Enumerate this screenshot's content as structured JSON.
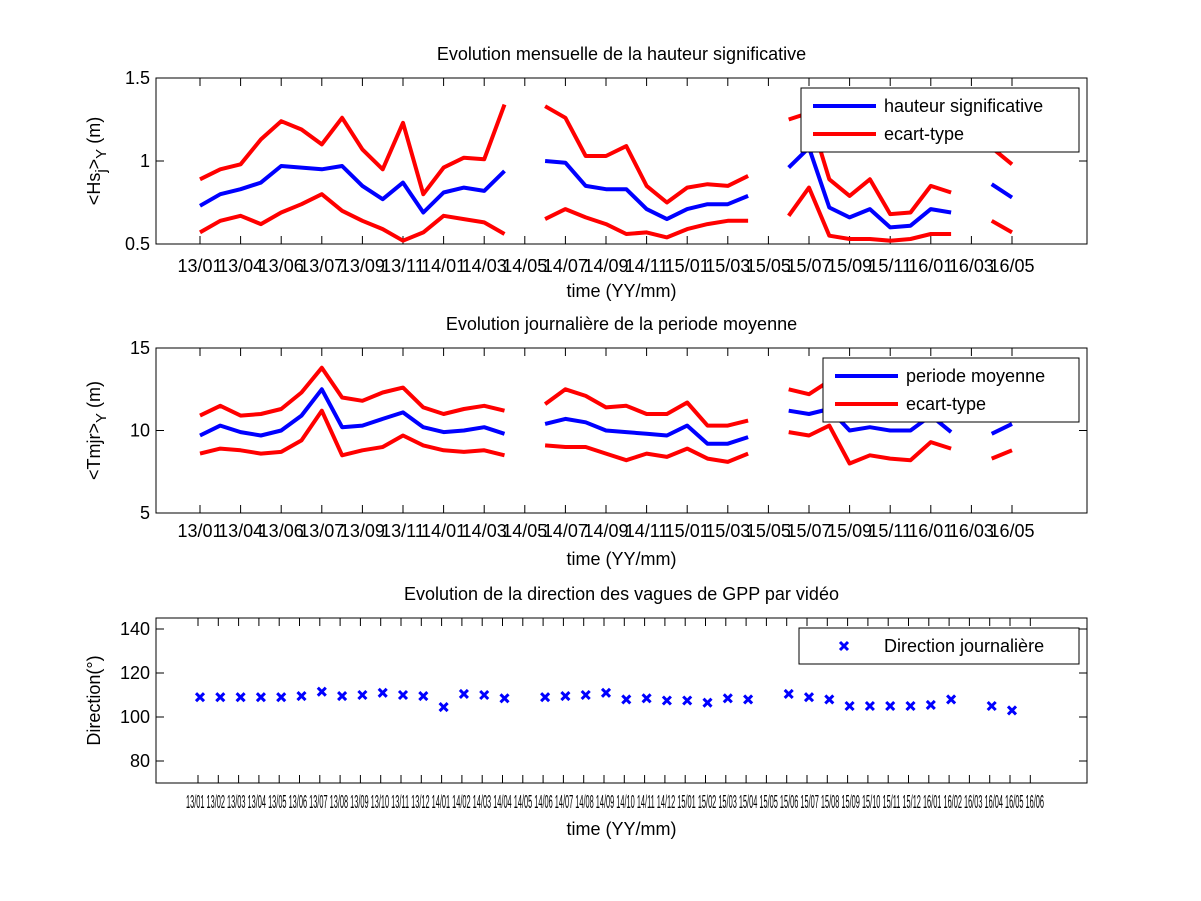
{
  "chart_data": [
    {
      "type": "line",
      "title": "Evolution mensuelle de la hauteur significative",
      "xlabel": "time (YY/mm)",
      "ylabel_main": "<Hs",
      "ylabel_sub": "j",
      "ylabel_close": ">",
      "ylabel_sub2": "Y",
      "ylabel_unit": " (m)",
      "ylim": [
        0.5,
        1.5
      ],
      "yticks": [
        "0.5",
        "1",
        "1.5"
      ],
      "xticks": [
        "13/01",
        "13/04",
        "13/06",
        "13/07",
        "13/09",
        "13/11",
        "14/01",
        "14/03",
        "14/05",
        "14/07",
        "14/09",
        "14/11",
        "15/01",
        "15/03",
        "15/05",
        "15/07",
        "15/09",
        "15/11",
        "16/01",
        "16/03",
        "16/05"
      ],
      "legend": {
        "position": "top-right",
        "entries": [
          "hauteur significative",
          "ecart-type"
        ]
      },
      "x": [
        1,
        2,
        3,
        4,
        5,
        6,
        7,
        8,
        9,
        10,
        11,
        12,
        13,
        14,
        15,
        16,
        17,
        18,
        19,
        20,
        21,
        22,
        23,
        24,
        25,
        26,
        27,
        28,
        29,
        30,
        31,
        32,
        33,
        34,
        35,
        36,
        37,
        38,
        39,
        40,
        41
      ],
      "series": [
        {
          "name": "hauteur significative",
          "color": "#0000ff",
          "values": [
            0.73,
            0.8,
            0.83,
            0.87,
            0.97,
            0.96,
            0.95,
            0.97,
            0.85,
            0.77,
            0.87,
            0.69,
            0.81,
            0.84,
            0.82,
            0.94,
            null,
            1.0,
            0.99,
            0.85,
            0.83,
            0.83,
            0.71,
            0.65,
            0.71,
            0.74,
            0.74,
            0.79,
            null,
            0.96,
            1.08,
            0.72,
            0.66,
            0.71,
            0.6,
            0.61,
            0.71,
            0.69,
            null,
            0.86,
            0.78
          ]
        },
        {
          "name": "ecart-type",
          "color": "#ff0000",
          "values": [
            0.89,
            0.95,
            0.98,
            1.13,
            1.24,
            1.19,
            1.1,
            1.26,
            1.07,
            0.95,
            1.23,
            0.8,
            0.96,
            1.02,
            1.01,
            1.34,
            null,
            1.33,
            1.26,
            1.03,
            1.03,
            1.09,
            0.85,
            0.75,
            0.84,
            0.86,
            0.85,
            0.91,
            null,
            1.25,
            1.29,
            0.89,
            0.79,
            0.89,
            0.68,
            0.69,
            0.85,
            0.81,
            null,
            1.08,
            0.98
          ]
        },
        {
          "name": "",
          "color": "#ff0000",
          "values": [
            0.57,
            0.64,
            0.67,
            0.62,
            0.69,
            0.74,
            0.8,
            0.7,
            0.64,
            0.59,
            0.52,
            0.57,
            0.67,
            0.65,
            0.63,
            0.56,
            null,
            0.65,
            0.71,
            0.66,
            0.62,
            0.56,
            0.57,
            0.54,
            0.59,
            0.62,
            0.64,
            0.64,
            null,
            0.67,
            0.84,
            0.55,
            0.53,
            0.53,
            0.52,
            0.53,
            0.56,
            0.56,
            null,
            0.64,
            0.57
          ]
        }
      ]
    },
    {
      "type": "line",
      "title": "Evolution journalière de la periode moyenne",
      "xlabel": "time (YY/mm)",
      "ylabel_main": "<Tmjr>",
      "ylabel_sub": "",
      "ylabel_close": "",
      "ylabel_sub2": "Y",
      "ylabel_unit": " (m)",
      "ylim": [
        5,
        15
      ],
      "yticks": [
        "5",
        "10",
        "15"
      ],
      "xticks": [
        "13/01",
        "13/04",
        "13/06",
        "13/07",
        "13/09",
        "13/11",
        "14/01",
        "14/03",
        "14/05",
        "14/07",
        "14/09",
        "14/11",
        "15/01",
        "15/03",
        "15/05",
        "15/07",
        "15/09",
        "15/11",
        "16/01",
        "16/03",
        "16/05"
      ],
      "legend": {
        "position": "top-right",
        "entries": [
          "periode moyenne",
          "ecart-type"
        ]
      },
      "x": [
        1,
        2,
        3,
        4,
        5,
        6,
        7,
        8,
        9,
        10,
        11,
        12,
        13,
        14,
        15,
        16,
        17,
        18,
        19,
        20,
        21,
        22,
        23,
        24,
        25,
        26,
        27,
        28,
        29,
        30,
        31,
        32,
        33,
        34,
        35,
        36,
        37,
        38,
        39,
        40,
        41
      ],
      "series": [
        {
          "name": "periode moyenne",
          "color": "#0000ff",
          "values": [
            9.7,
            10.3,
            9.9,
            9.7,
            10.0,
            10.9,
            12.5,
            10.2,
            10.3,
            10.7,
            11.1,
            10.2,
            9.9,
            10.0,
            10.2,
            9.8,
            null,
            10.4,
            10.7,
            10.5,
            10.0,
            9.9,
            9.8,
            9.7,
            10.3,
            9.2,
            9.2,
            9.6,
            null,
            11.2,
            11.0,
            11.3,
            10.0,
            10.2,
            10.0,
            10.0,
            10.9,
            9.9,
            null,
            9.8,
            10.4
          ]
        },
        {
          "name": "ecart-type",
          "color": "#ff0000",
          "values": [
            10.9,
            11.5,
            10.9,
            11.0,
            11.3,
            12.3,
            13.8,
            12.0,
            11.8,
            12.3,
            12.6,
            11.4,
            11.0,
            11.3,
            11.5,
            11.2,
            null,
            11.6,
            12.5,
            12.1,
            11.4,
            11.5,
            11.0,
            11.0,
            11.7,
            10.3,
            10.3,
            10.6,
            null,
            12.5,
            12.2,
            13.0,
            11.7,
            11.9,
            11.7,
            11.8,
            12.4,
            11.7,
            null,
            11.5,
            12.0
          ]
        },
        {
          "name": "",
          "color": "#ff0000",
          "values": [
            8.6,
            8.9,
            8.8,
            8.6,
            8.7,
            9.4,
            11.2,
            8.5,
            8.8,
            9.0,
            9.7,
            9.1,
            8.8,
            8.7,
            8.8,
            8.5,
            null,
            9.1,
            9.0,
            9.0,
            8.6,
            8.2,
            8.6,
            8.4,
            8.9,
            8.3,
            8.1,
            8.6,
            null,
            9.9,
            9.7,
            10.3,
            8.0,
            8.5,
            8.3,
            8.2,
            9.3,
            8.9,
            null,
            8.3,
            8.8
          ]
        }
      ]
    },
    {
      "type": "scatter",
      "title": "Evolution de la direction des vagues de GPP par vidéo",
      "xlabel": "time (YY/mm)",
      "ylabel": "Direction(°)",
      "ylim": [
        70,
        145
      ],
      "yticks": [
        "80",
        "100",
        "120",
        "140"
      ],
      "xtick_text": "13/01 13/02 13/03 13/04 13/05 13/06 13/07 13/08 13/09 13/10 13/11 13/12 14/01 14/02 14/03 14/04 14/05 14/06 14/07 14/08 14/09 14/10 14/11 14/12 15/01 15/02 15/03 15/04 15/05 15/06 15/07 15/08 15/09 15/10 15/11 15/12 16/01 16/02 16/03 16/04 16/05 16/06",
      "xticks": [
        "13/01",
        "13/02",
        "13/03",
        "13/04",
        "13/05",
        "13/06",
        "13/07",
        "13/08",
        "13/09",
        "13/10",
        "13/11",
        "13/12",
        "14/01",
        "14/02",
        "14/03",
        "14/04",
        "14/05",
        "14/06",
        "14/07",
        "14/08",
        "14/09",
        "14/10",
        "14/11",
        "14/12",
        "15/01",
        "15/02",
        "15/03",
        "15/04",
        "15/05",
        "15/06",
        "15/07",
        "15/08",
        "15/09",
        "15/10",
        "15/11",
        "15/12",
        "16/01",
        "16/02",
        "16/03",
        "16/04",
        "16/05",
        "16/06"
      ],
      "legend": {
        "position": "top-right",
        "entries": [
          "Direction journalière"
        ]
      },
      "series": [
        {
          "name": "Direction journalière",
          "color": "#0000ff",
          "marker": "x",
          "x": [
            1,
            2,
            3,
            4,
            5,
            6,
            7,
            8,
            9,
            10,
            11,
            12,
            13,
            14,
            15,
            16,
            18,
            19,
            20,
            21,
            22,
            23,
            24,
            25,
            26,
            27,
            28,
            30,
            31,
            32,
            33,
            34,
            35,
            36,
            37,
            38,
            40,
            41
          ],
          "values": [
            109,
            109,
            109,
            109,
            109,
            109.5,
            111.5,
            109.5,
            110,
            111,
            110,
            109.5,
            104.5,
            110.5,
            110,
            108.5,
            109,
            109.5,
            110,
            111,
            108,
            108.5,
            107.5,
            107.5,
            106.5,
            108.5,
            108,
            110.5,
            109,
            108,
            105,
            105,
            105,
            105,
            105.5,
            108,
            105,
            103
          ]
        }
      ]
    }
  ]
}
